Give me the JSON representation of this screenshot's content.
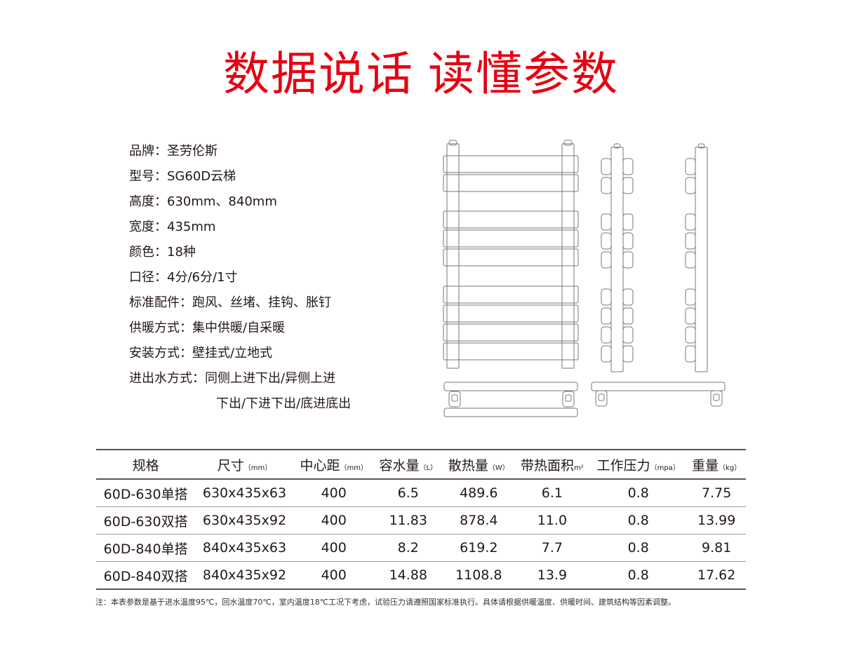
{
  "title": {
    "bold": "数据说话",
    "light": "读懂参数",
    "color": "#e60012"
  },
  "specs": [
    {
      "label": "品牌：",
      "value": "圣劳伦斯"
    },
    {
      "label": "型号：",
      "value": "SG60D云梯"
    },
    {
      "label": "高度：",
      "value": "630mm、840mm"
    },
    {
      "label": "宽度：",
      "value": "435mm"
    },
    {
      "label": "颜色：",
      "value": "18种"
    },
    {
      "label": "口径：",
      "value": "4分/6分/1寸"
    },
    {
      "label": "标准配件：",
      "value": "跑风、丝堵、挂钩、胀钉"
    },
    {
      "label": "供暖方式：",
      "value": "集中供暖/自采暖"
    },
    {
      "label": "安装方式：",
      "value": "壁挂式/立地式"
    },
    {
      "label": "进出水方式：",
      "value": "同侧上进下出/异侧上进"
    }
  ],
  "specs_continuation": "下出/下进下出/底进底出",
  "table": {
    "headers": [
      {
        "name": "规格",
        "unit": ""
      },
      {
        "name": "尺寸",
        "unit": "（mm）"
      },
      {
        "name": "中心距",
        "unit": "（mm）"
      },
      {
        "name": "容水量",
        "unit": "（L）"
      },
      {
        "name": "散热量",
        "unit": "（W）"
      },
      {
        "name": "带热面积",
        "unit": "m²"
      },
      {
        "name": "工作压力",
        "unit": "（mpa）"
      },
      {
        "name": "重量",
        "unit": "（kg）"
      }
    ],
    "rows": [
      [
        "60D-630单搭",
        "630x435x63",
        "400",
        "6.5",
        "489.6",
        "6.1",
        "0.8",
        "7.75"
      ],
      [
        "60D-630双搭",
        "630x435x92",
        "400",
        "11.83",
        "878.4",
        "11.0",
        "0.8",
        "13.99"
      ],
      [
        "60D-840单搭",
        "840x435x63",
        "400",
        "8.2",
        "619.2",
        "7.7",
        "0.8",
        "9.81"
      ],
      [
        "60D-840双搭",
        "840x435x92",
        "400",
        "14.88",
        "1108.8",
        "13.9",
        "0.8",
        "17.62"
      ]
    ]
  },
  "note": "注：本表参数是基于进水温度95℃，回水温度70℃，室内温度18℃工况下考虑，试验压力请遵照国家标准执行。具体请根据供暖温度、供暖时间、建筑结构等因素调整。"
}
